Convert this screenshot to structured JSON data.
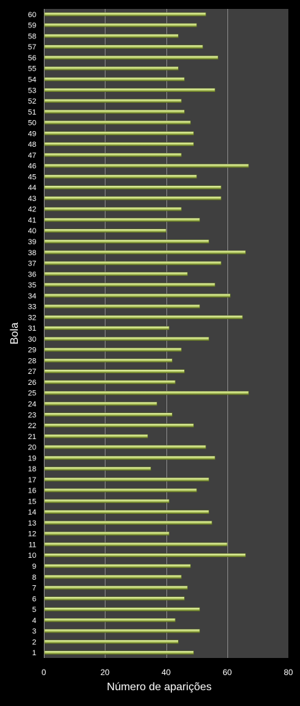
{
  "chart_data": {
    "type": "bar",
    "orientation": "horizontal",
    "title": "",
    "xlabel": "Número de aparições",
    "ylabel": "Bola",
    "xlim": [
      0,
      80
    ],
    "x_ticks": [
      0,
      20,
      40,
      60,
      80
    ],
    "grid": "vertical major gridlines",
    "legend": "none",
    "categories": [
      "1",
      "2",
      "3",
      "4",
      "5",
      "6",
      "7",
      "8",
      "9",
      "10",
      "11",
      "12",
      "13",
      "14",
      "15",
      "16",
      "17",
      "18",
      "19",
      "20",
      "21",
      "22",
      "23",
      "24",
      "25",
      "26",
      "27",
      "28",
      "29",
      "30",
      "31",
      "32",
      "33",
      "34",
      "35",
      "36",
      "37",
      "38",
      "39",
      "40",
      "41",
      "42",
      "43",
      "44",
      "45",
      "46",
      "47",
      "48",
      "49",
      "50",
      "51",
      "52",
      "53",
      "54",
      "55",
      "56",
      "57",
      "58",
      "59",
      "60"
    ],
    "values": [
      49,
      44,
      51,
      43,
      51,
      46,
      47,
      45,
      48,
      66,
      60,
      41,
      55,
      54,
      41,
      50,
      54,
      35,
      56,
      53,
      34,
      49,
      42,
      37,
      67,
      43,
      46,
      42,
      45,
      54,
      41,
      65,
      51,
      61,
      56,
      47,
      58,
      66,
      54,
      40,
      51,
      45,
      58,
      58,
      50,
      67,
      45,
      49,
      49,
      48,
      46,
      45,
      56,
      46,
      44,
      57,
      52,
      44,
      50,
      53
    ],
    "colors": {
      "background": "#000000",
      "plot_area": "#3f3f3f",
      "bar_fill": "#c6dc74",
      "bar_highlight": "#eef7bf",
      "bar_edge": "#5f7020",
      "gridline": "#8c8c8c",
      "text": "#ffffff"
    }
  }
}
